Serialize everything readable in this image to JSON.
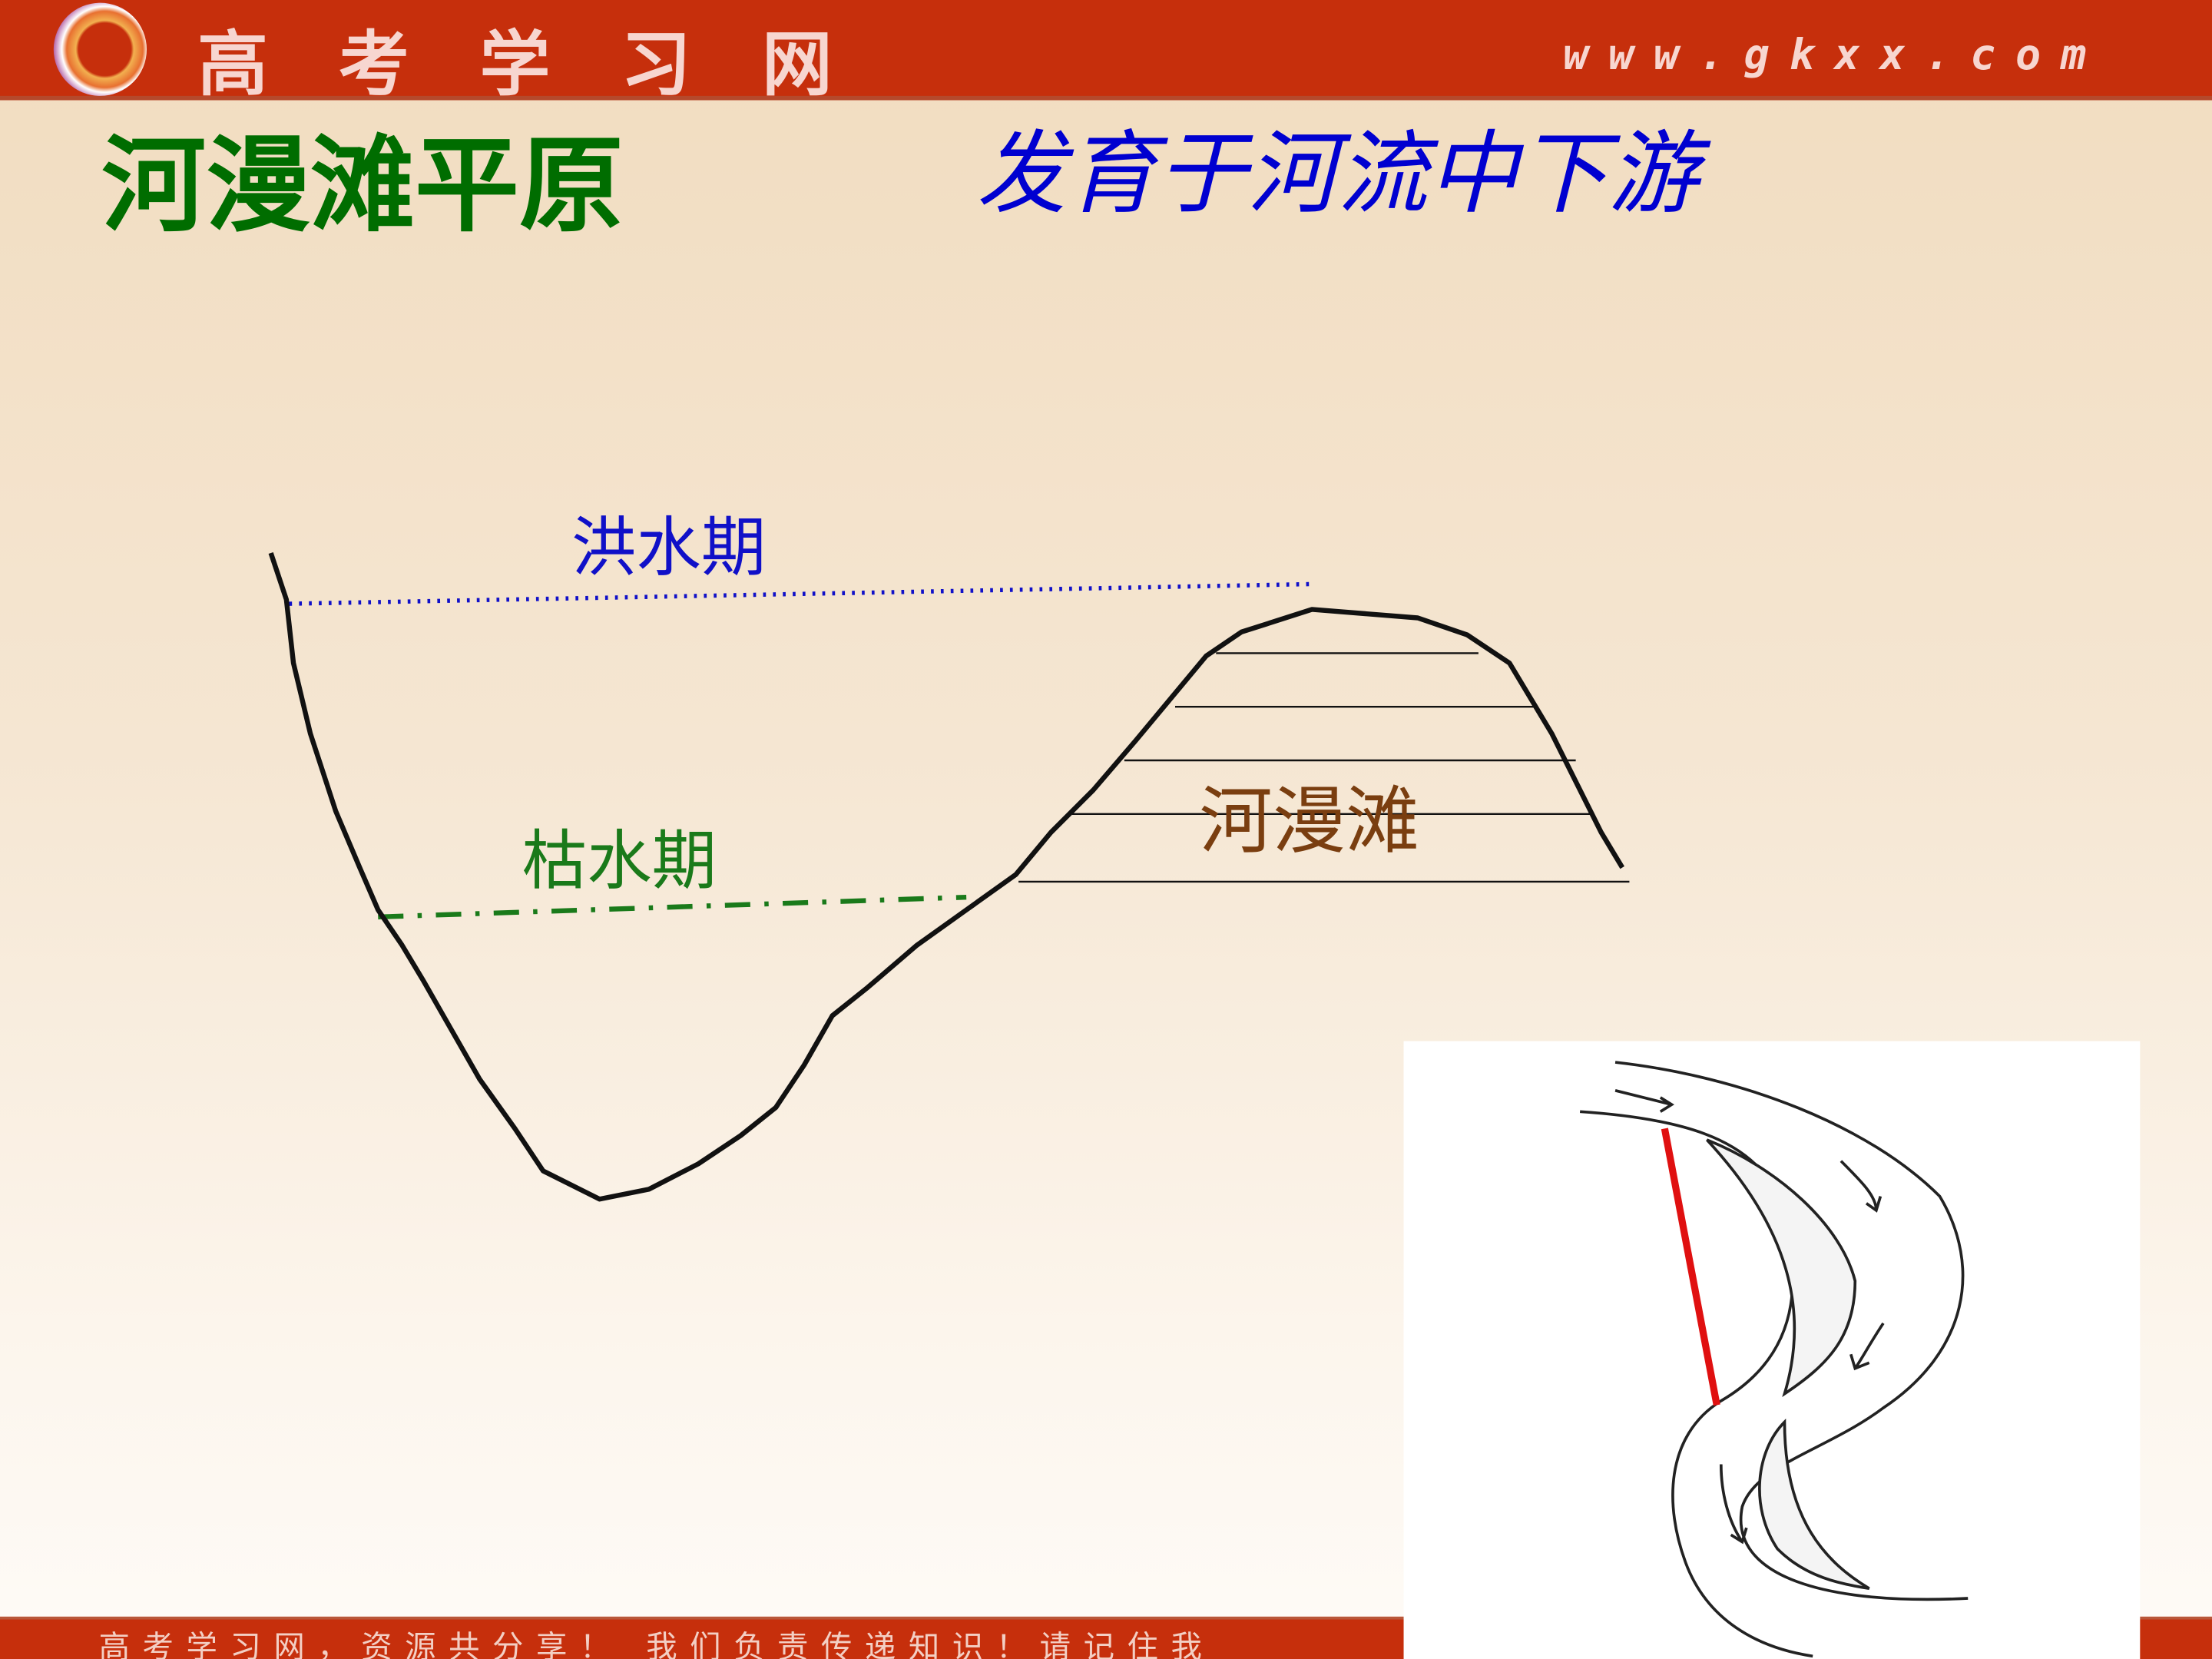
{
  "header": {
    "brand": "高考学习网",
    "url": "www.gkxx.com",
    "logo_icon": "gkxx-logo",
    "color": "#c62f0c"
  },
  "slide": {
    "title": "河漫滩平原",
    "subtitle": "发育于河流中下游"
  },
  "diagram": {
    "flood_label": "洪水期",
    "dry_label": "枯水期",
    "floodplain_label": "河漫滩",
    "colors": {
      "flood": "#1010c8",
      "dry": "#1a7a1a",
      "floodplain": "#7a3e10",
      "meander_line": "#e01010"
    }
  },
  "footer": {
    "text": "高考学习网，资源共分享！ 我们负责传递知识！请记住我"
  }
}
